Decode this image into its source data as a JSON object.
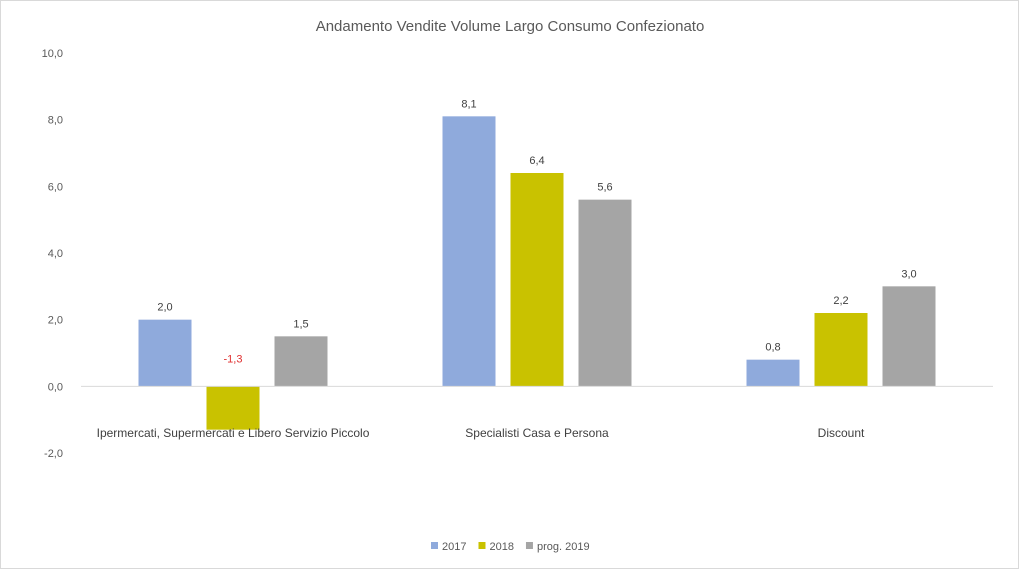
{
  "chart_data": {
    "type": "bar",
    "title": "Andamento Vendite Volume Largo Consumo Confezionato",
    "categories": [
      "Ipermercati, Supermercati e Libero Servizio Piccolo",
      "Specialisti Casa e Persona",
      "Discount"
    ],
    "series": [
      {
        "name": "2017",
        "values": [
          2.0,
          8.1,
          0.8
        ],
        "labels": [
          "2,0",
          "8,1",
          "0,8"
        ],
        "color": "#8faadc"
      },
      {
        "name": "2018",
        "values": [
          -1.3,
          6.4,
          2.2
        ],
        "labels": [
          "-1,3",
          "6,4",
          "2,2"
        ],
        "color": "#c9c200"
      },
      {
        "name": "prog. 2019",
        "values": [
          1.5,
          5.6,
          3.0
        ],
        "labels": [
          "1,5",
          "5,6",
          "3,0"
        ],
        "color": "#a5a5a5"
      }
    ],
    "ylim": [
      -2.0,
      10.0
    ],
    "yticks": [
      10.0,
      8.0,
      6.0,
      4.0,
      2.0,
      0.0,
      -2.0
    ],
    "ytick_labels": [
      "10,0",
      "8,0",
      "6,0",
      "4,0",
      "2,0",
      "0,0",
      "-2,0"
    ],
    "negative_label_color": "#e03030",
    "grid": false,
    "legend": "bottom-center"
  }
}
